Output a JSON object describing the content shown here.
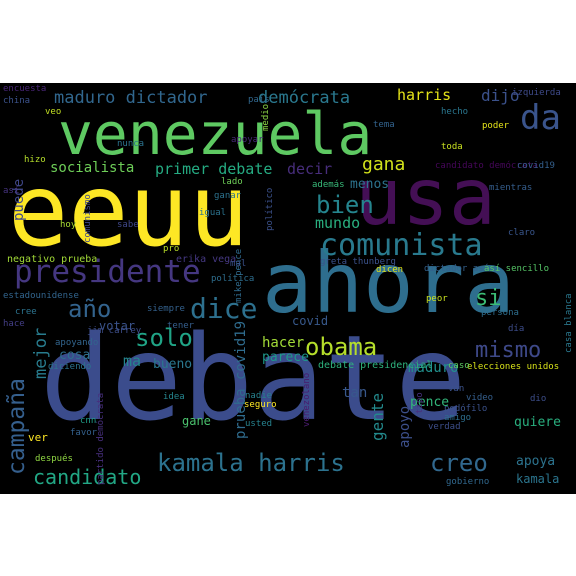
{
  "palette": {
    "background": "#000000",
    "page": "#ffffff"
  },
  "words": [
    {
      "text": "debate",
      "color": "#3b4c8c"
    },
    {
      "text": "eeuu",
      "color": "#fde725"
    },
    {
      "text": "ahora",
      "color": "#2e6e8e"
    },
    {
      "text": "venezuela",
      "color": "#5ec962"
    },
    {
      "text": "usa",
      "color": "#440f55"
    },
    {
      "text": "presidente",
      "color": "#453781"
    },
    {
      "text": "comunista",
      "color": "#297a8e"
    },
    {
      "text": "dice",
      "color": "#2d708e"
    },
    {
      "text": "obama",
      "color": "#b5de2b"
    },
    {
      "text": "kamala harris",
      "color": "#2c728e"
    },
    {
      "text": "creo",
      "color": "#31688e"
    },
    {
      "text": "mismo",
      "color": "#3e4989"
    },
    {
      "text": "bien",
      "color": "#25858e"
    },
    {
      "text": "solo",
      "color": "#20a486"
    },
    {
      "text": "año",
      "color": "#33638d"
    },
    {
      "text": "campaña",
      "color": "#355f8d"
    },
    {
      "text": "candidato",
      "color": "#22a785"
    },
    {
      "text": "mejor",
      "color": "#287c8e"
    },
    {
      "text": "maduro dictador",
      "color": "#31678e"
    },
    {
      "text": "demócrata",
      "color": "#2a788e"
    },
    {
      "text": "harris",
      "color": "#e5e419"
    },
    {
      "text": "dijo",
      "color": "#3b518b"
    },
    {
      "text": "da",
      "color": "#3a548c"
    },
    {
      "text": "gana",
      "color": "#d2e21b"
    },
    {
      "text": "primer debate",
      "color": "#25ab82"
    },
    {
      "text": "decir",
      "color": "#472d7b"
    },
    {
      "text": "socialista",
      "color": "#6ece58"
    },
    {
      "text": "puede",
      "color": "#3f4788"
    },
    {
      "text": "mundo",
      "color": "#29af7f"
    },
    {
      "text": "menos",
      "color": "#2c738e"
    },
    {
      "text": "si",
      "color": "#3bbb75"
    },
    {
      "text": "gente",
      "color": "#238a8d"
    },
    {
      "text": "hacer",
      "color": "#a2da37"
    },
    {
      "text": "parece",
      "color": "#1f988b"
    },
    {
      "text": "maduro",
      "color": "#21908d"
    },
    {
      "text": "tan",
      "color": "#38588c"
    },
    {
      "text": "prueba covid19",
      "color": "#2f6c8e"
    },
    {
      "text": "apoyo",
      "color": "#3c4f8a"
    },
    {
      "text": "quiere",
      "color": "#29af7f"
    },
    {
      "text": "pence",
      "color": "#32b67a"
    },
    {
      "text": "apoya",
      "color": "#2c738e"
    },
    {
      "text": "kamala",
      "color": "#2b758e"
    },
    {
      "text": "ma",
      "color": "#25858e"
    },
    {
      "text": "bueno",
      "color": "#2a778e"
    },
    {
      "text": "cosa",
      "color": "#2e6f8e"
    },
    {
      "text": "votar",
      "color": "#3a538b"
    },
    {
      "text": "covid",
      "color": "#38598c"
    },
    {
      "text": "gane",
      "color": "#4ac16d"
    },
    {
      "text": "ver",
      "color": "#fde725"
    },
    {
      "text": "debate presidencial",
      "color": "#2db27d"
    },
    {
      "text": "elecciones unidos",
      "color": "#d8e219"
    },
    {
      "text": "mike pence",
      "color": "#2f6b8e"
    },
    {
      "text": "greta thunberg",
      "color": "#3b528b"
    },
    {
      "text": "candidato demócrata",
      "color": "#46075a"
    },
    {
      "text": "covid19",
      "color": "#34608d"
    },
    {
      "text": "negativo prueba",
      "color": "#a2da37"
    },
    {
      "text": "erika vega",
      "color": "#453882"
    },
    {
      "text": "dictador así",
      "color": "#34618d"
    },
    {
      "text": "así sencillo",
      "color": "#56c667"
    },
    {
      "text": "estadounidense",
      "color": "#32658e"
    },
    {
      "text": "jim carrey",
      "color": "#3d4e8a"
    },
    {
      "text": "partido demócrata",
      "color": "#472f7d"
    },
    {
      "text": "venezolano",
      "color": "#481b6d"
    },
    {
      "text": "casa blanca",
      "color": "#2a788e"
    },
    {
      "text": "encuesta",
      "color": "#482576"
    },
    {
      "text": "país",
      "color": "#31678e"
    },
    {
      "text": "izquierda",
      "color": "#3e4a89"
    },
    {
      "text": "china",
      "color": "#3b528b"
    },
    {
      "text": "veo",
      "color": "#c2df23"
    },
    {
      "text": "medio",
      "color": "#8bd646"
    },
    {
      "text": "hecho",
      "color": "#2a768e"
    },
    {
      "text": "apoyar",
      "color": "#482878"
    },
    {
      "text": "tema",
      "color": "#33638d"
    },
    {
      "text": "poder",
      "color": "#e5e419"
    },
    {
      "text": "nunca",
      "color": "#2c738e"
    },
    {
      "text": "toda",
      "color": "#c8e020"
    },
    {
      "text": "hizo",
      "color": "#b5de2b"
    },
    {
      "text": "lado",
      "color": "#6ece58"
    },
    {
      "text": "además",
      "color": "#37b878"
    },
    {
      "text": "mientras",
      "color": "#355e8d"
    },
    {
      "text": "así",
      "color": "#46337f"
    },
    {
      "text": "comunismo",
      "color": "#3f4889"
    },
    {
      "text": "ganar",
      "color": "#2c728e"
    },
    {
      "text": "político",
      "color": "#3b518b"
    },
    {
      "text": "claro",
      "color": "#39568c"
    },
    {
      "text": "hoy",
      "color": "#a8db34"
    },
    {
      "text": "sabe",
      "color": "#3f4788"
    },
    {
      "text": "igual",
      "color": "#2c738e"
    },
    {
      "text": "pro",
      "color": "#b8de29"
    },
    {
      "text": "dicen",
      "color": "#e2e418"
    },
    {
      "text": "mal",
      "color": "#3b528b"
    },
    {
      "text": "política",
      "color": "#2e6e8e"
    },
    {
      "text": "peor",
      "color": "#c8e020"
    },
    {
      "text": "siempre",
      "color": "#34618d"
    },
    {
      "text": "cree",
      "color": "#2c738e"
    },
    {
      "text": "hace",
      "color": "#433e85"
    },
    {
      "text": "tener",
      "color": "#355f8d"
    },
    {
      "text": "persona",
      "color": "#2e6e8e"
    },
    {
      "text": "apoyando",
      "color": "#32658e"
    },
    {
      "text": "día",
      "color": "#3d4d8a"
    },
    {
      "text": "diciendo",
      "color": "#2c738e"
    },
    {
      "text": "caso",
      "color": "#5ec962"
    },
    {
      "text": "van",
      "color": "#3b528b"
    },
    {
      "text": "video",
      "color": "#355f8d"
    },
    {
      "text": "dio",
      "color": "#3d4e8a"
    },
    {
      "text": "cnn",
      "color": "#1f9e89"
    },
    {
      "text": "idea",
      "color": "#25858e"
    },
    {
      "text": "nadie",
      "color": "#26818e"
    },
    {
      "text": "seguro",
      "color": "#fde725"
    },
    {
      "text": "tipo",
      "color": "#472f7d"
    },
    {
      "text": "favor",
      "color": "#34618d"
    },
    {
      "text": "usted",
      "color": "#26828e"
    },
    {
      "text": "verdad",
      "color": "#3d4e8a"
    },
    {
      "text": "pedófilo",
      "color": "#3b528b"
    },
    {
      "text": "amigo",
      "color": "#2e6e8e"
    },
    {
      "text": "después",
      "color": "#90d743"
    },
    {
      "text": "gobierno",
      "color": "#31688e"
    }
  ]
}
